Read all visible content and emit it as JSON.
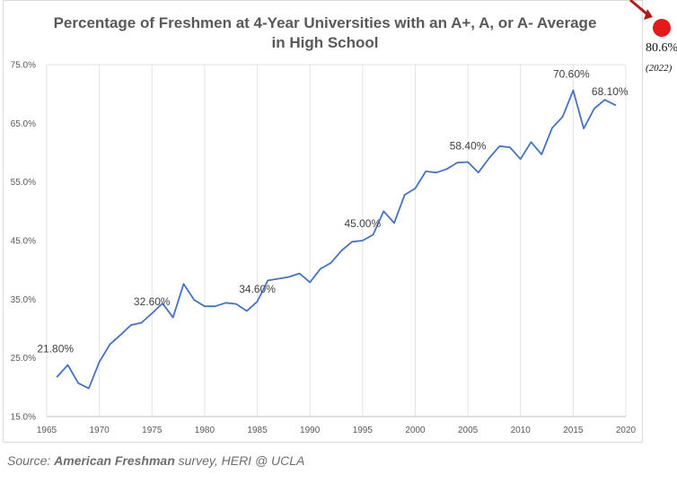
{
  "chart_data": {
    "type": "line",
    "title_line1": "Percentage of Freshmen at 4-Year Universities with an A+, A, or A- Average",
    "title_line2": "in High School",
    "xlabel": "",
    "ylabel": "",
    "xlim": [
      1965,
      2020
    ],
    "ylim": [
      15,
      75
    ],
    "x_ticks": [
      1965,
      1970,
      1975,
      1980,
      1985,
      1990,
      1995,
      2000,
      2005,
      2010,
      2015,
      2020
    ],
    "y_ticks": [
      15,
      25,
      35,
      45,
      55,
      65,
      75
    ],
    "y_tick_labels": [
      "15.0%",
      "25.0%",
      "35.0%",
      "45.0%",
      "55.0%",
      "65.0%",
      "75.0%"
    ],
    "grid": "vertical",
    "series": [
      {
        "color": "#4472c4",
        "x": [
          1966,
          1967,
          1968,
          1969,
          1970,
          1971,
          1972,
          1973,
          1974,
          1975,
          1976,
          1977,
          1978,
          1979,
          1980,
          1981,
          1982,
          1983,
          1984,
          1985,
          1986,
          1987,
          1988,
          1989,
          1990,
          1991,
          1992,
          1993,
          1994,
          1995,
          1996,
          1997,
          1998,
          1999,
          2000,
          2001,
          2002,
          2003,
          2004,
          2005,
          2006,
          2007,
          2008,
          2009,
          2010,
          2011,
          2012,
          2013,
          2014,
          2015,
          2016,
          2017,
          2018,
          2019
        ],
        "values": [
          21.8,
          23.8,
          20.7,
          19.8,
          24.3,
          27.3,
          28.9,
          30.6,
          31.0,
          32.6,
          34.3,
          31.9,
          37.6,
          34.9,
          33.8,
          33.8,
          34.4,
          34.2,
          33.0,
          34.6,
          38.2,
          38.5,
          38.8,
          39.4,
          37.9,
          40.2,
          41.2,
          43.3,
          44.8,
          45.0,
          46.0,
          50.0,
          48.0,
          52.8,
          53.9,
          56.8,
          56.6,
          57.2,
          58.3,
          58.4,
          56.6,
          59.0,
          61.1,
          60.9,
          58.9,
          61.8,
          59.7,
          64.2,
          66.1,
          70.6,
          64.1,
          67.5,
          69.0,
          68.1
        ]
      }
    ],
    "annotations": [
      {
        "x": 1966,
        "y": 21.8,
        "label": "21.80%"
      },
      {
        "x": 1975,
        "y": 32.6,
        "label": "32.60%"
      },
      {
        "x": 1985,
        "y": 34.6,
        "label": "34.60%"
      },
      {
        "x": 1995,
        "y": 45.0,
        "label": "45.00%"
      },
      {
        "x": 2005,
        "y": 58.4,
        "label": "58.40%"
      },
      {
        "x": 2015,
        "y": 70.6,
        "label": "70.60%"
      },
      {
        "x": 2019,
        "y": 68.1,
        "label": "68.10%"
      }
    ]
  },
  "callout": {
    "value": "80.6%",
    "year": "(2022)",
    "marker_color": "#e31b1b",
    "arrow_color": "#b01c1c"
  },
  "source": {
    "prefix": "Source: ",
    "bold": "American Freshman",
    "suffix": " survey, HERI @ UCLA"
  }
}
